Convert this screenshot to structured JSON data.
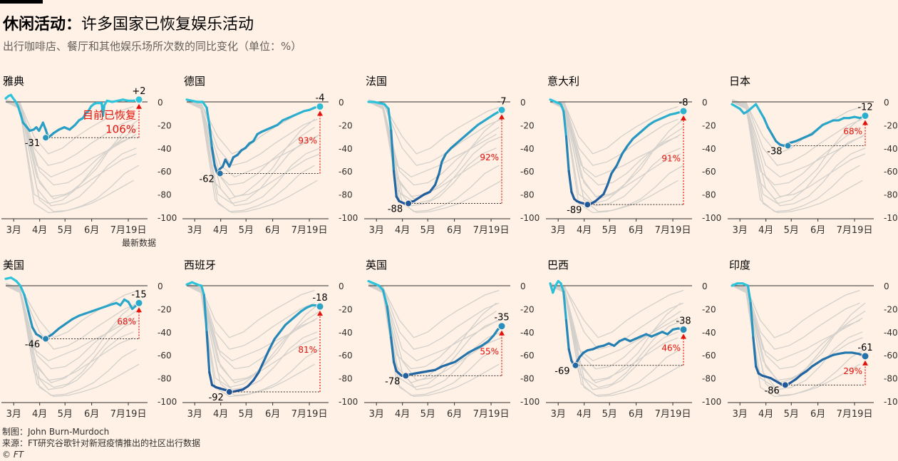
{
  "header": {
    "title_bold": "休闲活动：",
    "title_rest": "许多国家已恢复娱乐活动",
    "subtitle": "出行咖啡店、餐厅和其他娱乐场所次数的同比变化（单位：%）"
  },
  "footer": {
    "credit": "制图：John Burn-Murdoch",
    "source": "来源：FT研究谷歌针对新冠疫情推出的社区出行数据",
    "copyright": "© FT"
  },
  "colors": {
    "background": "#fff1e5",
    "light_line": "#2ec4dc",
    "dark_line": "#1f5597",
    "gray_line": "#d3d0cc",
    "annotation_red": "#e3120b",
    "axis": "#33302e"
  },
  "chart_data": [
    {
      "type": "line",
      "title": "雅典",
      "ylim": [
        -100,
        0
      ],
      "yticks": [
        0,
        -20,
        -40,
        -60,
        -80,
        -100
      ],
      "xticks": [
        "3月",
        "4月",
        "5月",
        "6月",
        "7月19日"
      ],
      "x": [
        0.0,
        0.02,
        0.04,
        0.05,
        0.07,
        0.09,
        0.11,
        0.13,
        0.16,
        0.18,
        0.21,
        0.23,
        0.25,
        0.28,
        0.3,
        0.32,
        0.36,
        0.4,
        0.44,
        0.48,
        0.52,
        0.55,
        0.58,
        0.6,
        0.62,
        0.64,
        0.66,
        0.68,
        0.7,
        0.72,
        0.73,
        0.74,
        0.76,
        0.8,
        0.84,
        0.88,
        0.92,
        0.96,
        1.0
      ],
      "y": [
        3,
        5,
        6,
        4,
        1,
        -3,
        -10,
        -18,
        -22,
        -25,
        -24,
        -22,
        -25,
        -18,
        -24,
        -31,
        -27,
        -24,
        -22,
        -24,
        -20,
        -16,
        -14,
        -10,
        -8,
        -4,
        -2,
        -1,
        -1,
        -1,
        -12,
        -3,
        1,
        0,
        1,
        2,
        1,
        1,
        2
      ],
      "min_x": 0.3,
      "min_value": -31,
      "last_value": 2,
      "min_label": "-31",
      "last_label": "+2",
      "recovery_label": "106%",
      "recovery_text": "目前已恢复",
      "latest_label": "最新数据"
    },
    {
      "type": "line",
      "title": "德国",
      "ylim": [
        -100,
        0
      ],
      "yticks": [
        0,
        -20,
        -40,
        -60,
        -80,
        -100
      ],
      "xticks": [
        "3月",
        "4月",
        "5月",
        "6月",
        "7月19日"
      ],
      "x": [
        0.0,
        0.04,
        0.08,
        0.12,
        0.15,
        0.17,
        0.19,
        0.21,
        0.23,
        0.25,
        0.27,
        0.29,
        0.32,
        0.35,
        0.38,
        0.41,
        0.44,
        0.47,
        0.5,
        0.53,
        0.56,
        0.6,
        0.64,
        0.68,
        0.72,
        0.76,
        0.8,
        0.84,
        0.88,
        0.92,
        0.96,
        1.0
      ],
      "y": [
        2,
        1,
        0,
        0,
        -5,
        -20,
        -40,
        -55,
        -62,
        -58,
        -56,
        -50,
        -56,
        -48,
        -46,
        -42,
        -40,
        -36,
        -34,
        -28,
        -26,
        -24,
        -22,
        -20,
        -16,
        -14,
        -12,
        -10,
        -8,
        -7,
        -5,
        -4
      ],
      "min_x": 0.25,
      "min_value": -62,
      "last_value": -4,
      "min_label": "-62",
      "last_label": "-4",
      "recovery_label": "93%"
    },
    {
      "type": "line",
      "title": "法国",
      "ylim": [
        -100,
        0
      ],
      "yticks": [
        0,
        -20,
        -40,
        -60,
        -80,
        -100
      ],
      "xticks": [
        "3月",
        "4月",
        "5月",
        "6月",
        "7月19日"
      ],
      "x": [
        0.0,
        0.04,
        0.08,
        0.12,
        0.15,
        0.17,
        0.19,
        0.21,
        0.23,
        0.25,
        0.27,
        0.3,
        0.34,
        0.38,
        0.42,
        0.46,
        0.5,
        0.53,
        0.55,
        0.58,
        0.62,
        0.66,
        0.7,
        0.74,
        0.78,
        0.82,
        0.86,
        0.9,
        0.94,
        0.97,
        1.0
      ],
      "y": [
        0,
        0,
        -1,
        -2,
        -6,
        -25,
        -60,
        -82,
        -86,
        -87,
        -88,
        -87,
        -86,
        -83,
        -80,
        -78,
        -72,
        -62,
        -52,
        -45,
        -40,
        -36,
        -32,
        -28,
        -24,
        -20,
        -17,
        -14,
        -11,
        -9,
        -7
      ],
      "min_x": 0.3,
      "min_value": -88,
      "last_value": -7,
      "min_label": "-88",
      "last_label": "-7",
      "recovery_label": "92%"
    },
    {
      "type": "line",
      "title": "意大利",
      "ylim": [
        -100,
        0
      ],
      "yticks": [
        0,
        -20,
        -40,
        -60,
        -80,
        -100
      ],
      "xticks": [
        "3月",
        "4月",
        "5月",
        "6月",
        "7月19日"
      ],
      "x": [
        0.0,
        0.04,
        0.08,
        0.1,
        0.12,
        0.14,
        0.16,
        0.18,
        0.2,
        0.22,
        0.25,
        0.28,
        0.31,
        0.34,
        0.37,
        0.4,
        0.43,
        0.46,
        0.5,
        0.54,
        0.58,
        0.62,
        0.66,
        0.7,
        0.74,
        0.78,
        0.82,
        0.86,
        0.9,
        0.94,
        0.97,
        1.0
      ],
      "y": [
        2,
        0,
        -2,
        -8,
        -30,
        -60,
        -78,
        -84,
        -86,
        -87,
        -88,
        -89,
        -88,
        -86,
        -83,
        -80,
        -72,
        -62,
        -55,
        -45,
        -38,
        -32,
        -28,
        -24,
        -20,
        -17,
        -15,
        -13,
        -11,
        -10,
        -9,
        -8
      ],
      "min_x": 0.28,
      "min_value": -89,
      "last_value": -8,
      "min_label": "-89",
      "last_label": "-8",
      "recovery_label": "91%"
    },
    {
      "type": "line",
      "title": "日本",
      "ylim": [
        -100,
        0
      ],
      "yticks": [
        0,
        -20,
        -40,
        -60,
        -80,
        -100
      ],
      "xticks": [
        "3月",
        "4月",
        "5月",
        "6月",
        "7月19日"
      ],
      "x": [
        0.0,
        0.03,
        0.06,
        0.09,
        0.12,
        0.15,
        0.18,
        0.21,
        0.24,
        0.27,
        0.3,
        0.33,
        0.36,
        0.39,
        0.42,
        0.45,
        0.48,
        0.52,
        0.56,
        0.6,
        0.64,
        0.68,
        0.72,
        0.76,
        0.8,
        0.84,
        0.88,
        0.92,
        0.96,
        1.0
      ],
      "y": [
        -2,
        -4,
        -6,
        -10,
        -8,
        -5,
        -2,
        -8,
        -14,
        -22,
        -28,
        -34,
        -37,
        -38,
        -36,
        -35,
        -34,
        -32,
        -30,
        -28,
        -24,
        -20,
        -18,
        -16,
        -16,
        -14,
        -14,
        -13,
        -14,
        -12
      ],
      "min_x": 0.42,
      "min_value": -38,
      "last_value": -12,
      "min_label": "-38",
      "last_label": "-12",
      "recovery_label": "68%"
    },
    {
      "type": "line",
      "title": "美国",
      "ylim": [
        -100,
        0
      ],
      "yticks": [
        0,
        -20,
        -40,
        -60,
        -80,
        -100
      ],
      "xticks": [
        "3月",
        "4月",
        "5月",
        "6月",
        "7月19日"
      ],
      "x": [
        0.0,
        0.04,
        0.08,
        0.11,
        0.14,
        0.17,
        0.2,
        0.23,
        0.26,
        0.28,
        0.31,
        0.35,
        0.4,
        0.45,
        0.5,
        0.55,
        0.6,
        0.65,
        0.7,
        0.75,
        0.8,
        0.83,
        0.86,
        0.89,
        0.92,
        0.95,
        1.0
      ],
      "y": [
        6,
        7,
        4,
        0,
        -8,
        -22,
        -36,
        -42,
        -44,
        -46,
        -45,
        -42,
        -37,
        -33,
        -29,
        -26,
        -24,
        -22,
        -20,
        -18,
        -16,
        -15,
        -17,
        -12,
        -14,
        -20,
        -15
      ],
      "min_x": 0.3,
      "min_value": -46,
      "last_value": -15,
      "min_label": "-46",
      "last_label": "-15",
      "recovery_label": "68%"
    },
    {
      "type": "line",
      "title": "西班牙",
      "ylim": [
        -100,
        0
      ],
      "yticks": [
        0,
        -20,
        -40,
        -60,
        -80,
        -100
      ],
      "xticks": [
        "3月",
        "4月",
        "5月",
        "6月",
        "7月19日"
      ],
      "x": [
        0.0,
        0.04,
        0.08,
        0.11,
        0.13,
        0.15,
        0.17,
        0.19,
        0.22,
        0.25,
        0.28,
        0.31,
        0.34,
        0.38,
        0.42,
        0.46,
        0.5,
        0.54,
        0.58,
        0.62,
        0.66,
        0.7,
        0.74,
        0.78,
        0.82,
        0.86,
        0.9,
        0.94,
        0.97,
        1.0
      ],
      "y": [
        1,
        3,
        1,
        0,
        -8,
        -40,
        -75,
        -86,
        -88,
        -89,
        -90,
        -91,
        -92,
        -91,
        -90,
        -87,
        -82,
        -75,
        -65,
        -55,
        -46,
        -40,
        -34,
        -30,
        -26,
        -22,
        -19,
        -17,
        -17,
        -18
      ],
      "min_x": 0.32,
      "min_value": -92,
      "last_value": -18,
      "min_label": "-92",
      "last_label": "-18",
      "recovery_label": "81%"
    },
    {
      "type": "line",
      "title": "英国",
      "ylim": [
        -100,
        0
      ],
      "yticks": [
        0,
        -20,
        -40,
        -60,
        -80,
        -100
      ],
      "xticks": [
        "3月",
        "4月",
        "5月",
        "6月",
        "7月19日"
      ],
      "x": [
        0.0,
        0.04,
        0.08,
        0.11,
        0.14,
        0.17,
        0.19,
        0.21,
        0.23,
        0.25,
        0.28,
        0.31,
        0.35,
        0.4,
        0.45,
        0.5,
        0.55,
        0.6,
        0.65,
        0.7,
        0.75,
        0.8,
        0.85,
        0.9,
        0.94,
        0.97,
        1.0
      ],
      "y": [
        4,
        2,
        0,
        -4,
        -18,
        -45,
        -66,
        -74,
        -76,
        -78,
        -77,
        -77,
        -76,
        -75,
        -74,
        -73,
        -70,
        -68,
        -66,
        -62,
        -58,
        -55,
        -52,
        -48,
        -43,
        -38,
        -35
      ],
      "min_x": 0.28,
      "min_value": -78,
      "last_value": -35,
      "min_label": "-78",
      "last_label": "-35",
      "recovery_label": "55%"
    },
    {
      "type": "line",
      "title": "巴西",
      "ylim": [
        -100,
        0
      ],
      "yticks": [
        0,
        -20,
        -40,
        -60,
        -80,
        -100
      ],
      "xticks": [
        "3月",
        "4月",
        "5月",
        "6月",
        "7月19日"
      ],
      "x": [
        0.0,
        0.02,
        0.04,
        0.06,
        0.08,
        0.1,
        0.12,
        0.14,
        0.16,
        0.18,
        0.2,
        0.22,
        0.25,
        0.28,
        0.32,
        0.36,
        0.4,
        0.44,
        0.48,
        0.52,
        0.56,
        0.6,
        0.64,
        0.68,
        0.72,
        0.76,
        0.8,
        0.84,
        0.88,
        0.92,
        0.96,
        1.0
      ],
      "y": [
        2,
        -6,
        0,
        4,
        2,
        -5,
        -30,
        -55,
        -65,
        -69,
        -66,
        -62,
        -58,
        -56,
        -55,
        -53,
        -52,
        -50,
        -52,
        -48,
        -46,
        -48,
        -46,
        -44,
        -42,
        -44,
        -42,
        -40,
        -42,
        -38,
        -37,
        -38
      ],
      "min_x": 0.19,
      "min_value": -69,
      "last_value": -38,
      "min_label": "-69",
      "last_label": "-38",
      "recovery_label": "46%"
    },
    {
      "type": "line",
      "title": "印度",
      "ylim": [
        -100,
        0
      ],
      "yticks": [
        0,
        -20,
        -40,
        -60,
        -80,
        -100
      ],
      "xticks": [
        "3月",
        "4月",
        "5月",
        "6月",
        "7月19日"
      ],
      "x": [
        0.0,
        0.04,
        0.08,
        0.12,
        0.14,
        0.16,
        0.18,
        0.2,
        0.23,
        0.26,
        0.29,
        0.32,
        0.35,
        0.38,
        0.41,
        0.44,
        0.48,
        0.52,
        0.56,
        0.6,
        0.64,
        0.68,
        0.72,
        0.76,
        0.8,
        0.85,
        0.9,
        0.95,
        1.0
      ],
      "y": [
        0,
        2,
        2,
        0,
        -15,
        -45,
        -70,
        -76,
        -78,
        -79,
        -80,
        -82,
        -84,
        -86,
        -86,
        -84,
        -81,
        -77,
        -74,
        -70,
        -67,
        -64,
        -62,
        -60,
        -59,
        -58,
        -58,
        -59,
        -61
      ],
      "min_x": 0.4,
      "min_value": -86,
      "last_value": -61,
      "min_label": "-86",
      "last_label": "-61",
      "recovery_label": "29%"
    }
  ]
}
